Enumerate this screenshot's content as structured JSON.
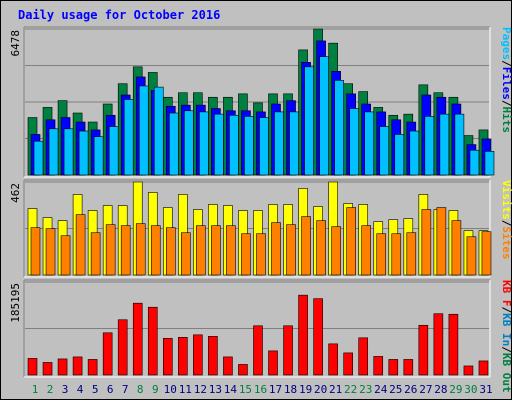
{
  "chart_data": {
    "title": "Daily usage for October 2016",
    "type": "bar",
    "days": [
      "1",
      "2",
      "3",
      "4",
      "5",
      "6",
      "7",
      "8",
      "9",
      "10",
      "11",
      "12",
      "13",
      "14",
      "15",
      "16",
      "17",
      "18",
      "19",
      "20",
      "21",
      "22",
      "23",
      "24",
      "25",
      "26",
      "27",
      "28",
      "29",
      "30",
      "31"
    ],
    "weekend_days": [
      1,
      2,
      8,
      9,
      15,
      16,
      22,
      23,
      29,
      30
    ],
    "colors": {
      "title": "#0000ff",
      "background": "#c0c0c0",
      "plot": "#c0c0c0",
      "weekday_label": "#000080",
      "weekend_label": "#008040",
      "hits": "#008040",
      "files": "#0000ff",
      "pages": "#00c0ff",
      "visits": "#ffff00",
      "sites": "#ff8000",
      "kbf": "#ff0000",
      "kbin": "#0080c0",
      "kbout": "#008040",
      "grid": "#808080"
    },
    "panels": [
      {
        "id": "requests",
        "max_label": "6478",
        "ymax": 6478,
        "legend": [
          {
            "text": "Pages",
            "color": "#00c0ff"
          },
          {
            "text": "/",
            "color": "#000000"
          },
          {
            "text": "Files",
            "color": "#0000ff"
          },
          {
            "text": "/",
            "color": "#000000"
          },
          {
            "text": "Hits",
            "color": "#008040"
          }
        ],
        "series": [
          {
            "name": "Hits",
            "color": "#008040",
            "values": [
              2550,
              3000,
              3300,
              2750,
              2350,
              3150,
              4050,
              4800,
              4550,
              3450,
              3650,
              3650,
              3450,
              3450,
              3600,
              3200,
              3600,
              3600,
              5550,
              6478,
              5850,
              4050,
              3700,
              3000,
              2650,
              2700,
              4000,
              3650,
              3450,
              1750,
              2000
            ]
          },
          {
            "name": "Files",
            "color": "#0000ff",
            "values": [
              1800,
              2450,
              2550,
              2350,
              2000,
              2650,
              3550,
              4350,
              3750,
              3050,
              3100,
              3100,
              2950,
              2850,
              2850,
              2800,
              3150,
              3300,
              5000,
              5950,
              4600,
              3600,
              3150,
              2800,
              2450,
              2350,
              3550,
              3450,
              3150,
              1350,
              1600
            ]
          },
          {
            "name": "Pages",
            "color": "#00c0ff",
            "values": [
              1500,
              2050,
              2050,
              1950,
              1700,
              2150,
              3350,
              3950,
              3900,
              2750,
              2850,
              2800,
              2700,
              2650,
              2600,
              2550,
              2800,
              2800,
              4800,
              5250,
              4200,
              2950,
              2800,
              2150,
              1800,
              1950,
              2600,
              2700,
              2700,
              1100,
              1050
            ]
          }
        ]
      },
      {
        "id": "visitors",
        "max_label": "462",
        "ymax": 462,
        "legend": [
          {
            "text": "Visits",
            "color": "#ffff00"
          },
          {
            "text": "/",
            "color": "#000000"
          },
          {
            "text": "Sites",
            "color": "#ff8000"
          }
        ],
        "series": [
          {
            "name": "Visits",
            "color": "#ffff00",
            "values": [
              330,
              285,
              270,
              400,
              320,
              345,
              345,
              462,
              410,
              335,
              400,
              325,
              350,
              345,
              320,
              320,
              350,
              350,
              430,
              340,
              462,
              355,
              350,
              265,
              275,
              280,
              400,
              325,
              320,
              220,
              220
            ]
          },
          {
            "name": "Sites",
            "color": "#ff8000",
            "values": [
              235,
              230,
              195,
              300,
              210,
              250,
              245,
              255,
              245,
              235,
              210,
              245,
              245,
              245,
              205,
              205,
              260,
              250,
              290,
              270,
              240,
              335,
              245,
              205,
              205,
              210,
              325,
              335,
              270,
              190,
              215
            ]
          }
        ]
      },
      {
        "id": "traffic",
        "max_label": "185195",
        "ymax": 185195,
        "legend": [
          {
            "text": "KB F",
            "color": "#ff0000"
          },
          {
            "text": "/",
            "color": "#000000"
          },
          {
            "text": "KB In",
            "color": "#0080c0"
          },
          {
            "text": "/",
            "color": "#000000"
          },
          {
            "text": "KB Out",
            "color": "#008040"
          }
        ],
        "series": [
          {
            "name": "KB F",
            "color": "#ff0000",
            "values": [
              33000,
              25000,
              32000,
              36000,
              31000,
              84000,
              110000,
              143000,
              135000,
              73000,
              75000,
              80000,
              77000,
              36000,
              21000,
              98000,
              48000,
              98000,
              159000,
              152000,
              62000,
              44000,
              74000,
              37000,
              31000,
              31000,
              99000,
              122000,
              121000,
              18000,
              28000
            ]
          }
        ]
      }
    ]
  }
}
